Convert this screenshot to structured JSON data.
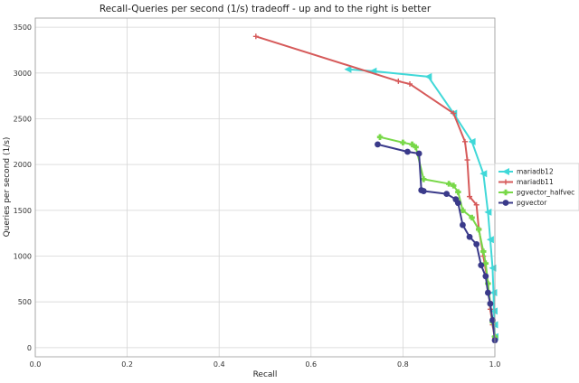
{
  "chart_data": {
    "type": "line",
    "title": "Recall-Queries per second (1/s) tradeoff - up and to the right is better",
    "xlabel": "Recall",
    "ylabel": "Queries per second (1/s)",
    "xlim": [
      0.0,
      1.0
    ],
    "ylim": [
      -100,
      3600
    ],
    "xticks": [
      "0.0",
      "0.2",
      "0.4",
      "0.6",
      "0.8",
      "1.0"
    ],
    "xtick_values": [
      0.0,
      0.2,
      0.4,
      0.6,
      0.8,
      1.0
    ],
    "yticks": [
      "0",
      "500",
      "1000",
      "1500",
      "2000",
      "2500",
      "3000",
      "3500"
    ],
    "ytick_values": [
      0,
      500,
      1000,
      1500,
      2000,
      2500,
      3000,
      3500
    ],
    "grid": true,
    "legend_position": "right",
    "series": [
      {
        "name": "mariadb12",
        "color": "#40d8d8",
        "marker": "triangle-left",
        "points": [
          [
            0.68,
            3040
          ],
          [
            0.735,
            3020
          ],
          [
            0.855,
            2960
          ],
          [
            0.91,
            2560
          ],
          [
            0.95,
            2250
          ],
          [
            0.975,
            1900
          ],
          [
            0.985,
            1480
          ],
          [
            0.99,
            1180
          ],
          [
            0.995,
            870
          ],
          [
            0.997,
            600
          ],
          [
            0.998,
            400
          ],
          [
            0.999,
            250
          ],
          [
            1.0,
            120
          ]
        ]
      },
      {
        "name": "mariadb11",
        "color": "#d65a5a",
        "marker": "plus",
        "points": [
          [
            0.48,
            3400
          ],
          [
            0.79,
            2910
          ],
          [
            0.815,
            2880
          ],
          [
            0.91,
            2560
          ],
          [
            0.935,
            2250
          ],
          [
            0.94,
            2050
          ],
          [
            0.945,
            1650
          ],
          [
            0.96,
            1560
          ],
          [
            0.965,
            1300
          ],
          [
            0.975,
            1000
          ],
          [
            0.985,
            700
          ],
          [
            0.99,
            420
          ],
          [
            0.995,
            250
          ],
          [
            1.0,
            100
          ]
        ]
      },
      {
        "name": "pgvector_halfvec",
        "color": "#78d848",
        "marker": "plus-filled",
        "points": [
          [
            0.75,
            2300
          ],
          [
            0.8,
            2240
          ],
          [
            0.82,
            2220
          ],
          [
            0.828,
            2190
          ],
          [
            0.845,
            1840
          ],
          [
            0.9,
            1790
          ],
          [
            0.91,
            1770
          ],
          [
            0.92,
            1700
          ],
          [
            0.93,
            1500
          ],
          [
            0.95,
            1420
          ],
          [
            0.965,
            1290
          ],
          [
            0.975,
            1050
          ],
          [
            0.98,
            920
          ],
          [
            0.985,
            700
          ],
          [
            0.99,
            480
          ],
          [
            0.995,
            280
          ],
          [
            1.0,
            120
          ]
        ]
      },
      {
        "name": "pgvector",
        "color": "#3a3a8a",
        "marker": "circle",
        "points": [
          [
            0.745,
            2220
          ],
          [
            0.81,
            2140
          ],
          [
            0.835,
            2120
          ],
          [
            0.84,
            1720
          ],
          [
            0.845,
            1710
          ],
          [
            0.895,
            1680
          ],
          [
            0.915,
            1620
          ],
          [
            0.92,
            1580
          ],
          [
            0.93,
            1340
          ],
          [
            0.945,
            1210
          ],
          [
            0.96,
            1130
          ],
          [
            0.97,
            900
          ],
          [
            0.98,
            780
          ],
          [
            0.985,
            600
          ],
          [
            0.99,
            480
          ],
          [
            0.995,
            300
          ],
          [
            1.0,
            80
          ]
        ]
      }
    ]
  }
}
